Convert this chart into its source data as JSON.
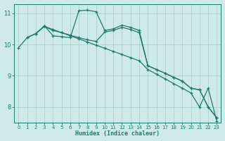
{
  "xlabel": "Humidex (Indice chaleur)",
  "bg_color": "#ceeae6",
  "grid_color": "#a8cdc9",
  "line_color": "#1e7b6e",
  "xlim": [
    -0.5,
    23.5
  ],
  "ylim": [
    7.5,
    11.3
  ],
  "yticks": [
    8,
    9,
    10,
    11
  ],
  "xticks": [
    0,
    1,
    2,
    3,
    4,
    5,
    6,
    7,
    8,
    9,
    10,
    11,
    12,
    13,
    14,
    15,
    16,
    17,
    18,
    19,
    20,
    21,
    22,
    23
  ],
  "line1_x": [
    0,
    1,
    2,
    3,
    4,
    5,
    6,
    7,
    8,
    9,
    10,
    11,
    12,
    13,
    14,
    15,
    16,
    17,
    18,
    19,
    20,
    21,
    22,
    23
  ],
  "line1_y": [
    9.9,
    10.22,
    10.35,
    10.6,
    10.28,
    10.25,
    10.22,
    11.08,
    11.1,
    11.05,
    10.45,
    10.5,
    10.62,
    10.55,
    10.45,
    9.32,
    9.2,
    9.08,
    8.95,
    8.83,
    8.6,
    8.55,
    8.0,
    7.65
  ],
  "line2_x": [
    1,
    2,
    3,
    4,
    5,
    6,
    7,
    8,
    9,
    10,
    11,
    12,
    13,
    14,
    15,
    16,
    17,
    18,
    19,
    20,
    21,
    22,
    23
  ],
  "line2_y": [
    10.22,
    10.35,
    10.58,
    10.45,
    10.38,
    10.3,
    10.22,
    10.15,
    10.1,
    10.4,
    10.45,
    10.55,
    10.48,
    10.38,
    9.32,
    9.2,
    9.08,
    8.95,
    8.83,
    8.6,
    8.55,
    8.0,
    7.65
  ],
  "line3_x": [
    2,
    3,
    4,
    5,
    6,
    7,
    8,
    9,
    10,
    11,
    12,
    13,
    14,
    15,
    16,
    17,
    18,
    19,
    20,
    21,
    22,
    23
  ],
  "line3_y": [
    10.35,
    10.58,
    10.48,
    10.38,
    10.28,
    10.18,
    10.08,
    9.98,
    9.88,
    9.78,
    9.68,
    9.58,
    9.48,
    9.2,
    9.05,
    8.9,
    8.75,
    8.6,
    8.45,
    8.0,
    8.6,
    7.55
  ]
}
